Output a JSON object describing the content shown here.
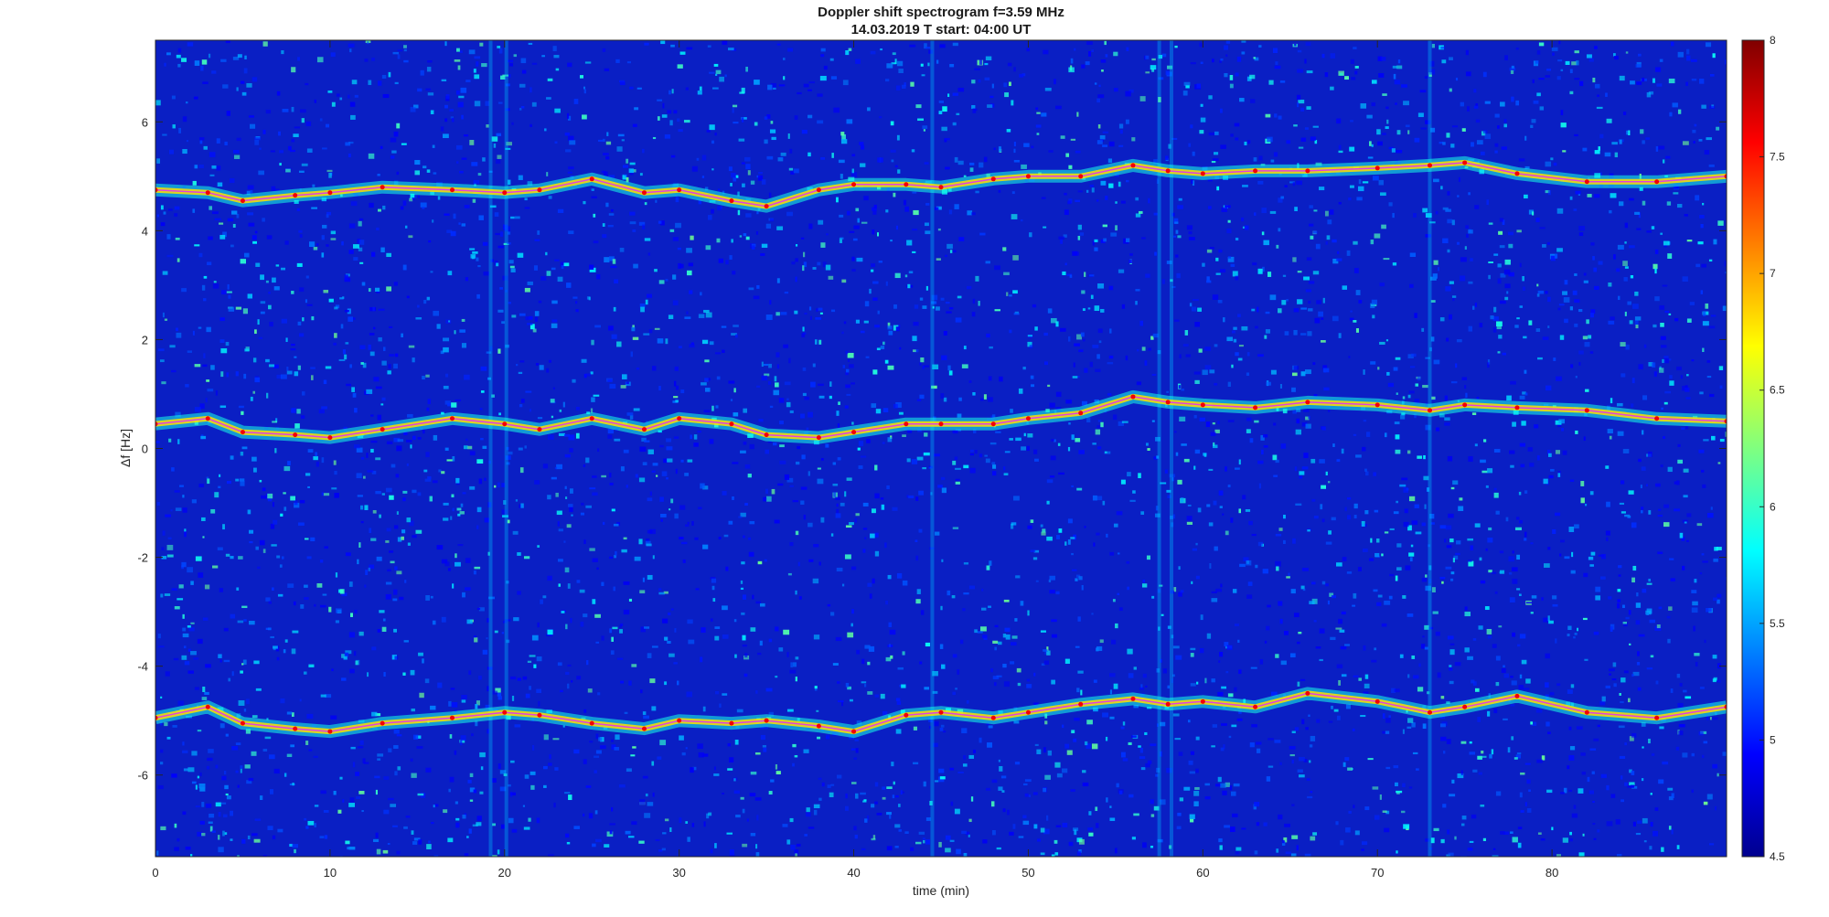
{
  "chart_data": {
    "type": "heatmap",
    "title": "Doppler shift spectrogram f=3.59 MHz",
    "subtitle": "14.03.2019   T start: 04:00 UT",
    "xlabel": "time (min)",
    "ylabel": "Δf [Hz]",
    "xlim": [
      0,
      90
    ],
    "ylim": [
      -7.5,
      7.5
    ],
    "xticks": [
      0,
      10,
      20,
      30,
      40,
      50,
      60,
      70,
      80
    ],
    "yticks": [
      -6,
      -4,
      -2,
      0,
      2,
      4,
      6
    ],
    "colormap": "jet",
    "colorbar": {
      "min": 4.5,
      "max": 8,
      "ticks": [
        4.5,
        5,
        5.5,
        6,
        6.5,
        7,
        7.5,
        8
      ]
    },
    "background_level": 4.9,
    "vertical_bright_lines_min": [
      19.2,
      20.1,
      44.5,
      57.5,
      58.2,
      73
    ],
    "grid": false,
    "series": [
      {
        "x": [
          0,
          3,
          5,
          8,
          10,
          13,
          17,
          20,
          22,
          25,
          28,
          30,
          33,
          35,
          38,
          40,
          43,
          45,
          48,
          50,
          53,
          56,
          58,
          60,
          63,
          66,
          70,
          73,
          75,
          78,
          82,
          86,
          90
        ],
        "y": [
          4.75,
          4.7,
          4.55,
          4.65,
          4.7,
          4.8,
          4.75,
          4.7,
          4.75,
          4.95,
          4.7,
          4.75,
          4.55,
          4.45,
          4.75,
          4.85,
          4.85,
          4.8,
          4.95,
          5.0,
          5.0,
          5.2,
          5.1,
          5.05,
          5.1,
          5.1,
          5.15,
          5.2,
          5.25,
          5.05,
          4.9,
          4.9,
          5.0
        ]
      },
      {
        "x": [
          0,
          3,
          5,
          8,
          10,
          13,
          17,
          20,
          22,
          25,
          28,
          30,
          33,
          35,
          38,
          40,
          43,
          45,
          48,
          50,
          53,
          56,
          58,
          60,
          63,
          66,
          70,
          73,
          75,
          78,
          82,
          86,
          90
        ],
        "y": [
          0.45,
          0.55,
          0.3,
          0.25,
          0.2,
          0.35,
          0.55,
          0.45,
          0.35,
          0.55,
          0.35,
          0.55,
          0.45,
          0.25,
          0.2,
          0.3,
          0.45,
          0.45,
          0.45,
          0.55,
          0.65,
          0.95,
          0.85,
          0.8,
          0.75,
          0.85,
          0.8,
          0.7,
          0.8,
          0.75,
          0.7,
          0.55,
          0.5
        ]
      },
      {
        "x": [
          0,
          3,
          5,
          8,
          10,
          13,
          17,
          20,
          22,
          25,
          28,
          30,
          33,
          35,
          38,
          40,
          43,
          45,
          48,
          50,
          53,
          56,
          58,
          60,
          63,
          66,
          70,
          73,
          75,
          78,
          82,
          86,
          90
        ],
        "y": [
          -4.95,
          -4.75,
          -5.05,
          -5.15,
          -5.2,
          -5.05,
          -4.95,
          -4.85,
          -4.9,
          -5.05,
          -5.15,
          -5.0,
          -5.05,
          -5.0,
          -5.1,
          -5.2,
          -4.9,
          -4.85,
          -4.95,
          -4.85,
          -4.7,
          -4.6,
          -4.7,
          -4.65,
          -4.75,
          -4.5,
          -4.65,
          -4.85,
          -4.75,
          -4.55,
          -4.85,
          -4.95,
          -4.75
        ]
      }
    ]
  }
}
